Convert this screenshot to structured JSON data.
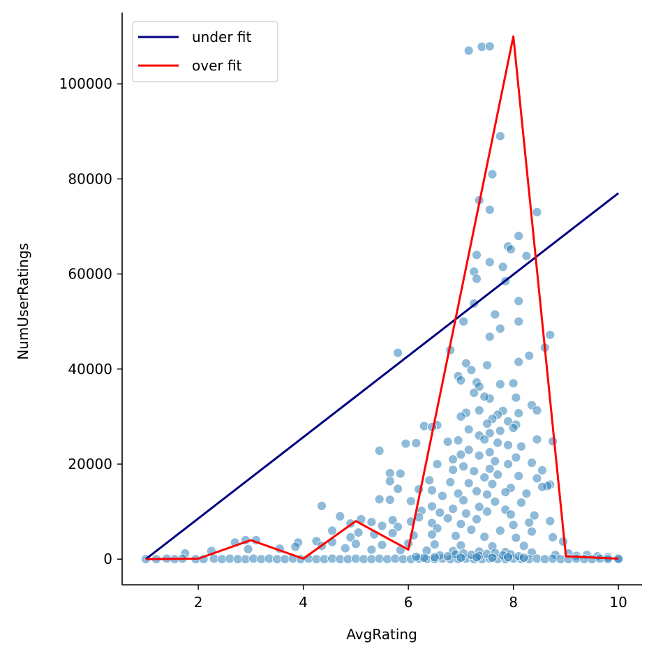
{
  "chart_data": {
    "type": "scatter",
    "xlabel": "AvgRating",
    "ylabel": "NumUserRatings",
    "xlim": [
      0.55,
      10.45
    ],
    "ylim": [
      -5400,
      115000
    ],
    "xticks": [
      2,
      4,
      6,
      8,
      10
    ],
    "yticks": [
      0,
      20000,
      40000,
      60000,
      80000,
      100000
    ],
    "grid": false,
    "legend_position": "top-left",
    "scatter": {
      "color": "#1f77b4",
      "points": [
        [
          7.15,
          107000
        ],
        [
          7.4,
          107800
        ],
        [
          7.55,
          107900
        ],
        [
          7.75,
          89000
        ],
        [
          7.6,
          81000
        ],
        [
          7.35,
          75500
        ],
        [
          7.55,
          73500
        ],
        [
          8.45,
          73000
        ],
        [
          8.1,
          68000
        ],
        [
          7.9,
          65800
        ],
        [
          7.95,
          65200
        ],
        [
          7.3,
          64000
        ],
        [
          8.25,
          63800
        ],
        [
          7.55,
          62500
        ],
        [
          7.25,
          60500
        ],
        [
          7.8,
          61500
        ],
        [
          7.3,
          59000
        ],
        [
          7.85,
          58500
        ],
        [
          8.1,
          54300
        ],
        [
          7.25,
          53800
        ],
        [
          7.65,
          51500
        ],
        [
          7.05,
          50000
        ],
        [
          7.75,
          48500
        ],
        [
          8.1,
          50000
        ],
        [
          8.7,
          47200
        ],
        [
          7.55,
          46800
        ],
        [
          6.8,
          44000
        ],
        [
          5.8,
          43400
        ],
        [
          8.6,
          44500
        ],
        [
          8.3,
          42800
        ],
        [
          8.1,
          41500
        ],
        [
          7.1,
          41200
        ],
        [
          7.5,
          40800
        ],
        [
          7.2,
          39800
        ],
        [
          6.95,
          38500
        ],
        [
          7.0,
          37600
        ],
        [
          7.3,
          37200
        ],
        [
          7.75,
          36800
        ],
        [
          8.0,
          37000
        ],
        [
          7.35,
          36300
        ],
        [
          7.25,
          35000
        ],
        [
          8.05,
          34000
        ],
        [
          7.55,
          33800
        ],
        [
          7.45,
          34200
        ],
        [
          8.35,
          32400
        ],
        [
          8.45,
          31300
        ],
        [
          8.1,
          30700
        ],
        [
          7.1,
          30800
        ],
        [
          7.35,
          31300
        ],
        [
          7.8,
          31200
        ],
        [
          7.7,
          30400
        ],
        [
          7.0,
          30000
        ],
        [
          7.6,
          29500
        ],
        [
          7.9,
          29000
        ],
        [
          7.5,
          28500
        ],
        [
          8.05,
          28300
        ],
        [
          6.3,
          28000
        ],
        [
          6.55,
          28200
        ],
        [
          6.45,
          27800
        ],
        [
          7.15,
          27300
        ],
        [
          8.0,
          27600
        ],
        [
          7.75,
          27000
        ],
        [
          7.55,
          26500
        ],
        [
          7.35,
          26000
        ],
        [
          8.45,
          25200
        ],
        [
          8.75,
          24800
        ],
        [
          6.95,
          25000
        ],
        [
          7.45,
          25200
        ],
        [
          7.7,
          24500
        ],
        [
          7.9,
          24000
        ],
        [
          8.15,
          23700
        ],
        [
          6.75,
          24700
        ],
        [
          6.15,
          24400
        ],
        [
          5.95,
          24300
        ],
        [
          7.15,
          23000
        ],
        [
          7.55,
          22500
        ],
        [
          5.45,
          22800
        ],
        [
          7.0,
          22000
        ],
        [
          7.35,
          21800
        ],
        [
          8.05,
          21400
        ],
        [
          6.85,
          21000
        ],
        [
          7.65,
          20600
        ],
        [
          8.35,
          20300
        ],
        [
          7.9,
          20000
        ],
        [
          6.55,
          20000
        ],
        [
          7.05,
          19500
        ],
        [
          6.85,
          18800
        ],
        [
          7.55,
          19000
        ],
        [
          7.25,
          18500
        ],
        [
          8.55,
          18700
        ],
        [
          5.65,
          18100
        ],
        [
          5.85,
          18000
        ],
        [
          7.7,
          17800
        ],
        [
          8.1,
          17500
        ],
        [
          7.45,
          17200
        ],
        [
          8.45,
          17000
        ],
        [
          6.4,
          16600
        ],
        [
          5.65,
          16400
        ],
        [
          6.8,
          16200
        ],
        [
          7.15,
          16000
        ],
        [
          7.6,
          15800
        ],
        [
          8.7,
          15700
        ],
        [
          8.65,
          15400
        ],
        [
          7.95,
          15000
        ],
        [
          8.55,
          15200
        ],
        [
          6.2,
          14700
        ],
        [
          6.45,
          14500
        ],
        [
          5.8,
          14800
        ],
        [
          7.3,
          14300
        ],
        [
          7.85,
          14100
        ],
        [
          6.95,
          13800
        ],
        [
          7.5,
          13600
        ],
        [
          8.25,
          13800
        ],
        [
          6.65,
          13300
        ],
        [
          5.45,
          12600
        ],
        [
          5.65,
          12500
        ],
        [
          6.05,
          12200
        ],
        [
          7.05,
          12400
        ],
        [
          7.65,
          12100
        ],
        [
          8.15,
          11900
        ],
        [
          4.35,
          11200
        ],
        [
          6.45,
          11100
        ],
        [
          7.35,
          11000
        ],
        [
          6.85,
          10600
        ],
        [
          6.25,
          10200
        ],
        [
          7.85,
          10400
        ],
        [
          7.5,
          10000
        ],
        [
          6.6,
          9800
        ],
        [
          7.1,
          9600
        ],
        [
          7.95,
          9400
        ],
        [
          8.4,
          9200
        ],
        [
          4.7,
          9000
        ],
        [
          6.2,
          8800
        ],
        [
          6.75,
          8600
        ],
        [
          7.3,
          8400
        ],
        [
          5.1,
          8400
        ],
        [
          5.3,
          7800
        ],
        [
          5.7,
          8200
        ],
        [
          6.05,
          7900
        ],
        [
          6.45,
          7600
        ],
        [
          7.0,
          7400
        ],
        [
          8.0,
          7200
        ],
        [
          8.7,
          8000
        ],
        [
          8.3,
          7700
        ],
        [
          4.9,
          7500
        ],
        [
          5.5,
          7000
        ],
        [
          5.8,
          6800
        ],
        [
          6.55,
          6500
        ],
        [
          7.2,
          6200
        ],
        [
          7.75,
          6000
        ],
        [
          8.35,
          5800
        ],
        [
          4.55,
          6000
        ],
        [
          5.05,
          5600
        ],
        [
          5.35,
          5200
        ],
        [
          5.7,
          5500
        ],
        [
          6.1,
          5000
        ],
        [
          6.45,
          5200
        ],
        [
          6.9,
          4900
        ],
        [
          7.45,
          4700
        ],
        [
          8.05,
          4500
        ],
        [
          8.75,
          4600
        ],
        [
          4.9,
          4600
        ],
        [
          4.25,
          3800
        ],
        [
          4.55,
          3600
        ],
        [
          3.9,
          3500
        ],
        [
          3.1,
          4000
        ],
        [
          2.9,
          4000
        ],
        [
          2.7,
          3500
        ],
        [
          5.0,
          3200
        ],
        [
          5.5,
          3000
        ],
        [
          6.0,
          3300
        ],
        [
          6.5,
          3100
        ],
        [
          7.0,
          2900
        ],
        [
          7.6,
          2700
        ],
        [
          8.2,
          2800
        ],
        [
          8.95,
          3700
        ],
        [
          4.35,
          2800
        ],
        [
          3.85,
          2600
        ],
        [
          3.55,
          2200
        ],
        [
          2.95,
          2100
        ],
        [
          2.25,
          1700
        ],
        [
          1.75,
          1200
        ],
        [
          4.8,
          2300
        ],
        [
          5.3,
          2000
        ],
        [
          5.85,
          1900
        ],
        [
          6.35,
          1800
        ],
        [
          6.85,
          1700
        ],
        [
          7.35,
          1600
        ],
        [
          7.85,
          1500
        ],
        [
          8.35,
          1400
        ],
        [
          9.05,
          1200
        ],
        [
          9.4,
          900
        ],
        [
          9.6,
          600
        ],
        [
          9.8,
          400
        ],
        [
          10.0,
          200
        ],
        [
          9.2,
          700
        ],
        [
          8.8,
          900
        ],
        [
          1.0,
          0
        ],
        [
          1.2,
          0
        ],
        [
          1.4,
          100
        ],
        [
          1.55,
          0
        ],
        [
          1.7,
          100
        ],
        [
          1.95,
          0
        ],
        [
          2.1,
          0
        ],
        [
          2.3,
          100
        ],
        [
          2.45,
          0
        ],
        [
          2.6,
          100
        ],
        [
          2.75,
          0
        ],
        [
          2.9,
          0
        ],
        [
          3.05,
          100
        ],
        [
          3.2,
          0
        ],
        [
          3.35,
          100
        ],
        [
          3.5,
          0
        ],
        [
          3.65,
          0
        ],
        [
          3.8,
          100
        ],
        [
          3.95,
          0
        ],
        [
          4.1,
          100
        ],
        [
          4.25,
          0
        ],
        [
          4.4,
          0
        ],
        [
          4.55,
          100
        ],
        [
          4.7,
          0
        ],
        [
          4.85,
          0
        ],
        [
          5.0,
          100
        ],
        [
          5.15,
          0
        ],
        [
          5.3,
          0
        ],
        [
          5.45,
          100
        ],
        [
          5.6,
          0
        ],
        [
          5.75,
          100
        ],
        [
          5.9,
          0
        ],
        [
          6.05,
          0
        ],
        [
          6.2,
          100
        ],
        [
          6.35,
          0
        ],
        [
          6.5,
          0
        ],
        [
          6.65,
          100
        ],
        [
          6.8,
          0
        ],
        [
          6.95,
          0
        ],
        [
          7.1,
          100
        ],
        [
          7.25,
          0
        ],
        [
          7.4,
          0
        ],
        [
          7.55,
          100
        ],
        [
          7.7,
          0
        ],
        [
          7.85,
          0
        ],
        [
          8.0,
          100
        ],
        [
          8.15,
          0
        ],
        [
          8.3,
          0
        ],
        [
          8.45,
          100
        ],
        [
          8.6,
          0
        ],
        [
          8.75,
          100
        ],
        [
          8.9,
          0
        ],
        [
          9.05,
          0
        ],
        [
          9.2,
          100
        ],
        [
          9.35,
          0
        ],
        [
          9.5,
          0
        ],
        [
          9.65,
          100
        ],
        [
          9.8,
          0
        ],
        [
          10.0,
          0
        ],
        [
          6.6,
          800
        ],
        [
          6.75,
          600
        ],
        [
          6.9,
          1000
        ],
        [
          7.05,
          1200
        ],
        [
          7.2,
          900
        ],
        [
          7.35,
          700
        ],
        [
          7.5,
          1100
        ],
        [
          7.65,
          1300
        ],
        [
          7.8,
          800
        ],
        [
          7.95,
          1000
        ],
        [
          8.1,
          600
        ],
        [
          6.5,
          400
        ],
        [
          6.3,
          300
        ],
        [
          6.15,
          500
        ],
        [
          7.0,
          300
        ],
        [
          7.3,
          400
        ],
        [
          7.6,
          300
        ],
        [
          7.9,
          400
        ],
        [
          8.2,
          300
        ]
      ]
    },
    "series": [
      {
        "name": "under fit",
        "type": "line",
        "color": "#000080",
        "x": [
          1,
          10
        ],
        "y": [
          0,
          77000
        ]
      },
      {
        "name": "over fit",
        "type": "line",
        "color": "#ff0000",
        "x": [
          1,
          2,
          3,
          4,
          5,
          6,
          7,
          8,
          9,
          10
        ],
        "y": [
          0,
          100,
          4000,
          100,
          8000,
          2000,
          56000,
          110000,
          600,
          100
        ]
      }
    ]
  }
}
